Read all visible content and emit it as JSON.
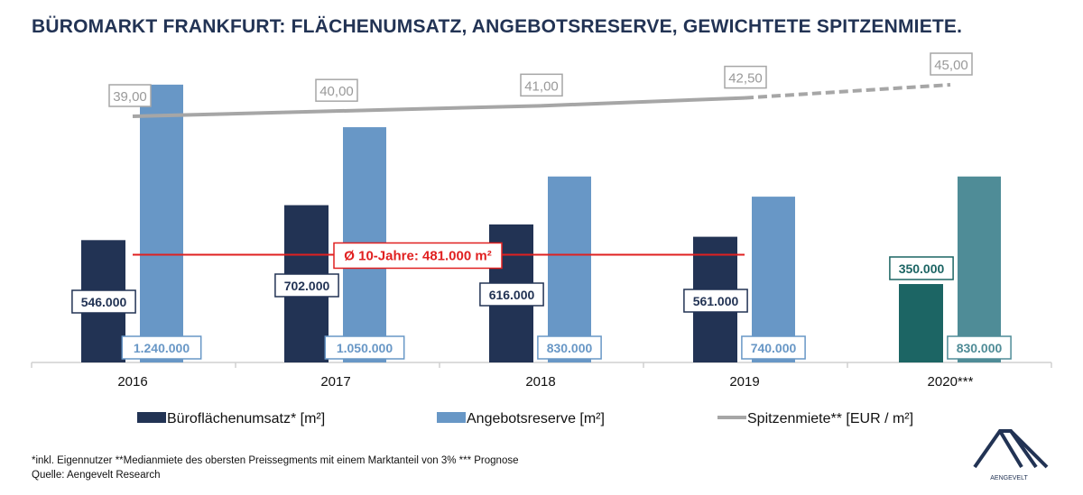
{
  "title": "BÜROMARKT FRANKFURT: FLÄCHENUMSATZ, ANGEBOTSRESERVE, GEWICHTETE SPITZENMIETE.",
  "chart_data": {
    "type": "bar",
    "categories": [
      "2016",
      "2017",
      "2018",
      "2019",
      "2020***"
    ],
    "series": [
      {
        "name": "Büroflächenumsatz* [m²]",
        "kind": "bar",
        "values": [
          546000,
          702000,
          616000,
          561000,
          350000
        ],
        "labels": [
          "546.000",
          "702.000",
          "616.000",
          "561.000",
          "350.000"
        ],
        "color": "#223354",
        "forecast_color": "#1c6564"
      },
      {
        "name": "Angebotsreserve [m²]",
        "kind": "bar",
        "values": [
          1240000,
          1050000,
          830000,
          740000,
          830000
        ],
        "labels": [
          "1.240.000",
          "1.050.000",
          "830.000",
          "740.000",
          "830.000"
        ],
        "color": "#6897c6",
        "forecast_color": "#4f8c97"
      },
      {
        "name": "Spitzenmiete** [EUR / m²]",
        "kind": "line",
        "values": [
          39.0,
          40.0,
          41.0,
          42.5,
          45.0
        ],
        "labels": [
          "39,00",
          "40,00",
          "41,00",
          "42,50",
          "45,00"
        ],
        "color": "#a6a6a6",
        "dashed_from": "2019"
      }
    ],
    "reference_line": {
      "label": "Ø 10-Jahre: 481.000 m²",
      "value": 481000,
      "color": "#e02020"
    },
    "forecast_category": "2020***",
    "legend": "bottom",
    "grid": false
  },
  "footnote": "*inkl. Eigennutzer **Medianmiete des obersten Preissegments mit einem Marktanteil von 3% *** Prognose",
  "source": "Quelle: Aengevelt Research",
  "logo": {
    "text": "AENGEVELT",
    "color": "#223354"
  }
}
